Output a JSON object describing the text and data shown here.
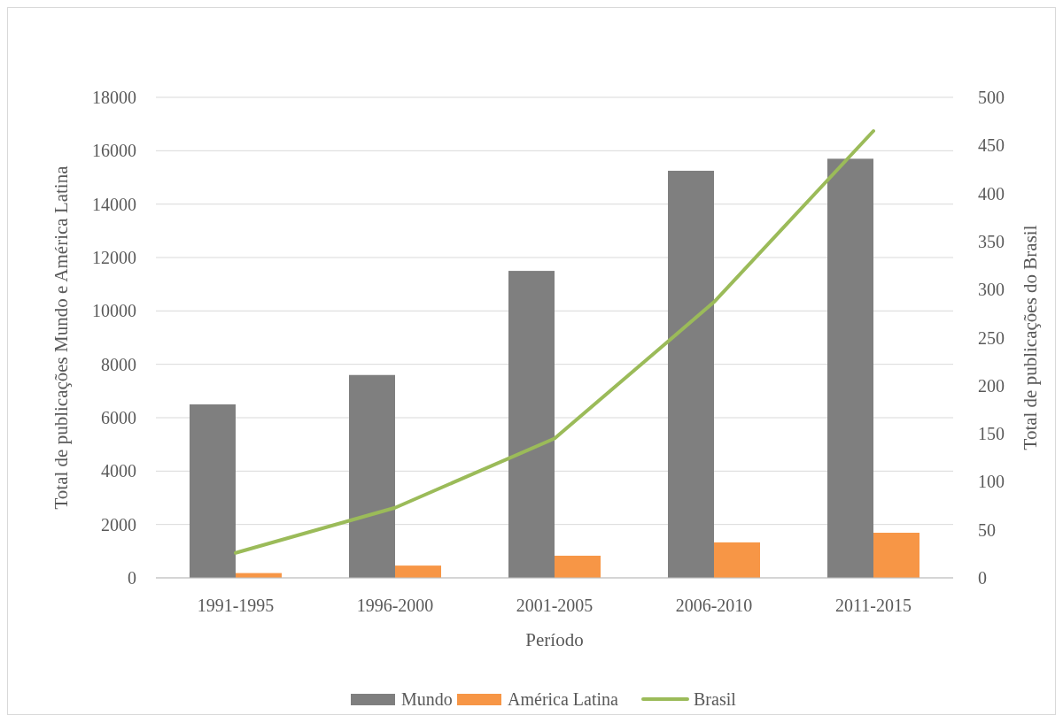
{
  "chart_data": {
    "type": "bar",
    "xlabel": "Período",
    "ylabel": "Total de publicações Mundo e América Latina",
    "y2label": "Total de publicações do Brasil",
    "categories": [
      "1991-1995",
      "1996-2000",
      "2001-2005",
      "2006-2010",
      "2011-2015"
    ],
    "series": [
      {
        "name": "Mundo",
        "color": "#7f7f7f",
        "values": [
          6500,
          7600,
          11500,
          15250,
          15700
        ]
      },
      {
        "name": "América Latina",
        "color": "#f79646",
        "values": [
          180,
          460,
          830,
          1330,
          1690
        ]
      },
      {
        "name": "Brasil",
        "type": "line",
        "axis": "y2",
        "color": "#9bbb59",
        "values": [
          26,
          73,
          145,
          287,
          465
        ]
      }
    ],
    "ylim": [
      0,
      18000
    ],
    "yticks": [
      0,
      2000,
      4000,
      6000,
      8000,
      10000,
      12000,
      14000,
      16000,
      18000
    ],
    "y2lim": [
      0,
      500
    ],
    "y2ticks": [
      0,
      50,
      100,
      150,
      200,
      250,
      300,
      350,
      400,
      450,
      500
    ],
    "grid": "y",
    "legend": "bottom"
  }
}
